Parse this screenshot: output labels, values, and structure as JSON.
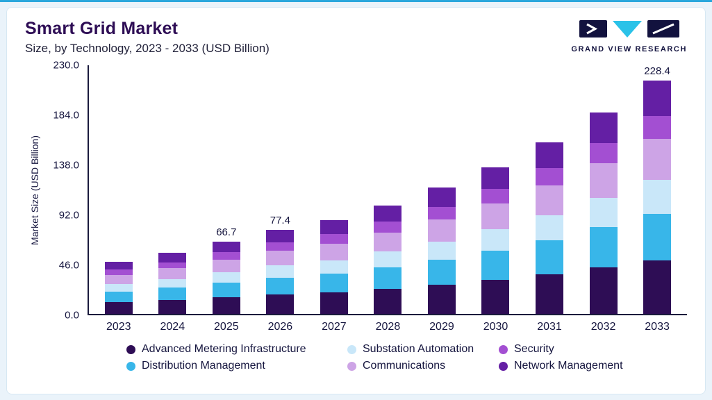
{
  "header": {
    "title": "Smart Grid Market",
    "subtitle": "Size, by Technology, 2023 - 2033 (USD Billion)",
    "logo_text": "GRAND VIEW RESEARCH"
  },
  "chart_data": {
    "type": "bar",
    "stacked": true,
    "title": "Smart Grid Market Size, by Technology, 2023 - 2033 (USD Billion)",
    "ylabel": "Market Size (USD Billion)",
    "xlabel": "",
    "ylim": [
      0,
      230
    ],
    "yticks": [
      0.0,
      46.0,
      92.0,
      138.0,
      184.0,
      230.0
    ],
    "grid": false,
    "legend_position": "bottom",
    "categories": [
      "2023",
      "2024",
      "2025",
      "2026",
      "2027",
      "2028",
      "2029",
      "2030",
      "2031",
      "2032",
      "2033"
    ],
    "series": [
      {
        "name": "Advanced Metering Infrastructure",
        "color": "#2E0D55",
        "values": [
          11.0,
          12.9,
          15.3,
          17.8,
          19.8,
          23.0,
          26.7,
          31.1,
          36.3,
          42.6,
          52.5
        ]
      },
      {
        "name": "Distribution Management",
        "color": "#38B6E9",
        "values": [
          9.6,
          11.2,
          13.3,
          15.5,
          17.2,
          20.0,
          23.2,
          27.0,
          31.6,
          37.0,
          45.7
        ]
      },
      {
        "name": "Substation Automation",
        "color": "#C9E7F9",
        "values": [
          7.0,
          8.1,
          9.7,
          11.2,
          12.5,
          14.5,
          16.8,
          19.6,
          22.9,
          26.8,
          33.1
        ]
      },
      {
        "name": "Communications",
        "color": "#CDA4E6",
        "values": [
          8.4,
          9.8,
          11.7,
          13.5,
          15.1,
          17.5,
          20.3,
          23.6,
          27.7,
          32.4,
          40.0
        ]
      },
      {
        "name": "Security",
        "color": "#A34FD2",
        "values": [
          4.8,
          5.6,
          6.7,
          7.7,
          8.6,
          10.0,
          11.6,
          13.5,
          15.8,
          18.5,
          22.8
        ]
      },
      {
        "name": "Network Management",
        "color": "#641FA4",
        "values": [
          7.2,
          8.4,
          10.0,
          11.7,
          12.8,
          15.0,
          17.4,
          20.2,
          23.7,
          27.7,
          34.3
        ]
      }
    ],
    "totals": [
      48.0,
      56.0,
      66.7,
      77.4,
      86.0,
      100.0,
      116.0,
      135.0,
      158.0,
      185.0,
      228.4
    ],
    "labeled_totals": {
      "2025": "66.7",
      "2026": "77.4",
      "2033": "228.4"
    }
  }
}
